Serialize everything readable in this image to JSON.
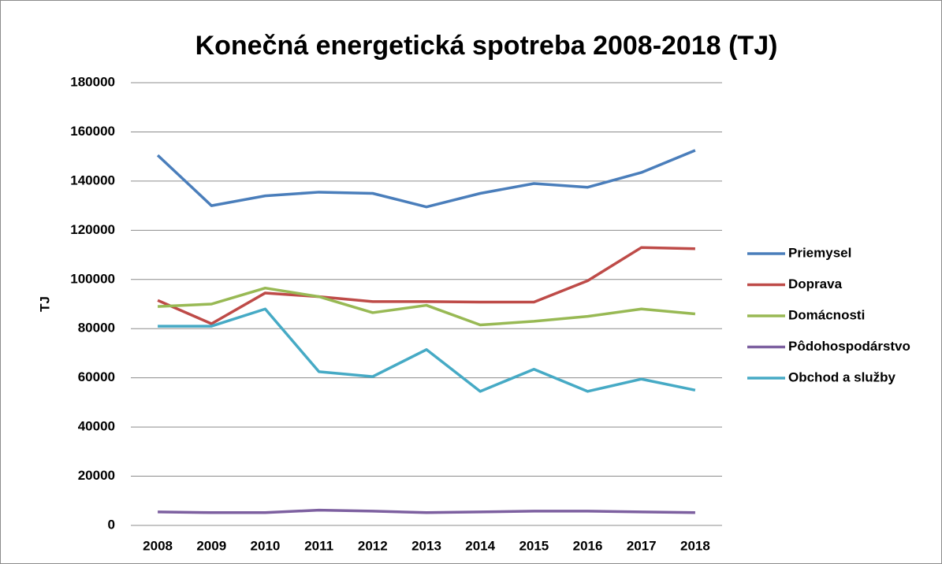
{
  "chart_data": {
    "type": "line",
    "title": "Konečná energetická spotreba 2008-2018 (TJ)",
    "y_label": "TJ",
    "categories": [
      "2008",
      "2009",
      "2010",
      "2011",
      "2012",
      "2013",
      "2014",
      "2015",
      "2016",
      "2017",
      "2018"
    ],
    "series": [
      {
        "name": "Priemysel",
        "color": "#4a7ebb",
        "values": [
          150500,
          130000,
          134000,
          135500,
          135000,
          129500,
          135000,
          139000,
          137500,
          143500,
          152500
        ]
      },
      {
        "name": "Doprava",
        "color": "#be4b48",
        "values": [
          91500,
          82000,
          94500,
          93000,
          91000,
          91000,
          90800,
          90800,
          99500,
          113000,
          112500
        ]
      },
      {
        "name": "Domácnosti",
        "color": "#98b954",
        "values": [
          89000,
          90000,
          96500,
          93000,
          86500,
          89500,
          81500,
          83000,
          85000,
          88000,
          86000
        ]
      },
      {
        "name": "Pôdohospodárstvo",
        "color": "#7d60a0",
        "values": [
          5500,
          5200,
          5200,
          6200,
          5800,
          5200,
          5500,
          5800,
          5800,
          5500,
          5200
        ]
      },
      {
        "name": "Obchod a služby",
        "color": "#46aac5",
        "values": [
          81000,
          81000,
          88000,
          62500,
          60500,
          71500,
          54500,
          63500,
          54500,
          59500,
          55000
        ]
      }
    ],
    "ylim": [
      0,
      180000
    ],
    "yticks": [
      0,
      20000,
      40000,
      60000,
      80000,
      100000,
      120000,
      140000,
      160000,
      180000
    ],
    "grid": true,
    "legend": "right"
  }
}
